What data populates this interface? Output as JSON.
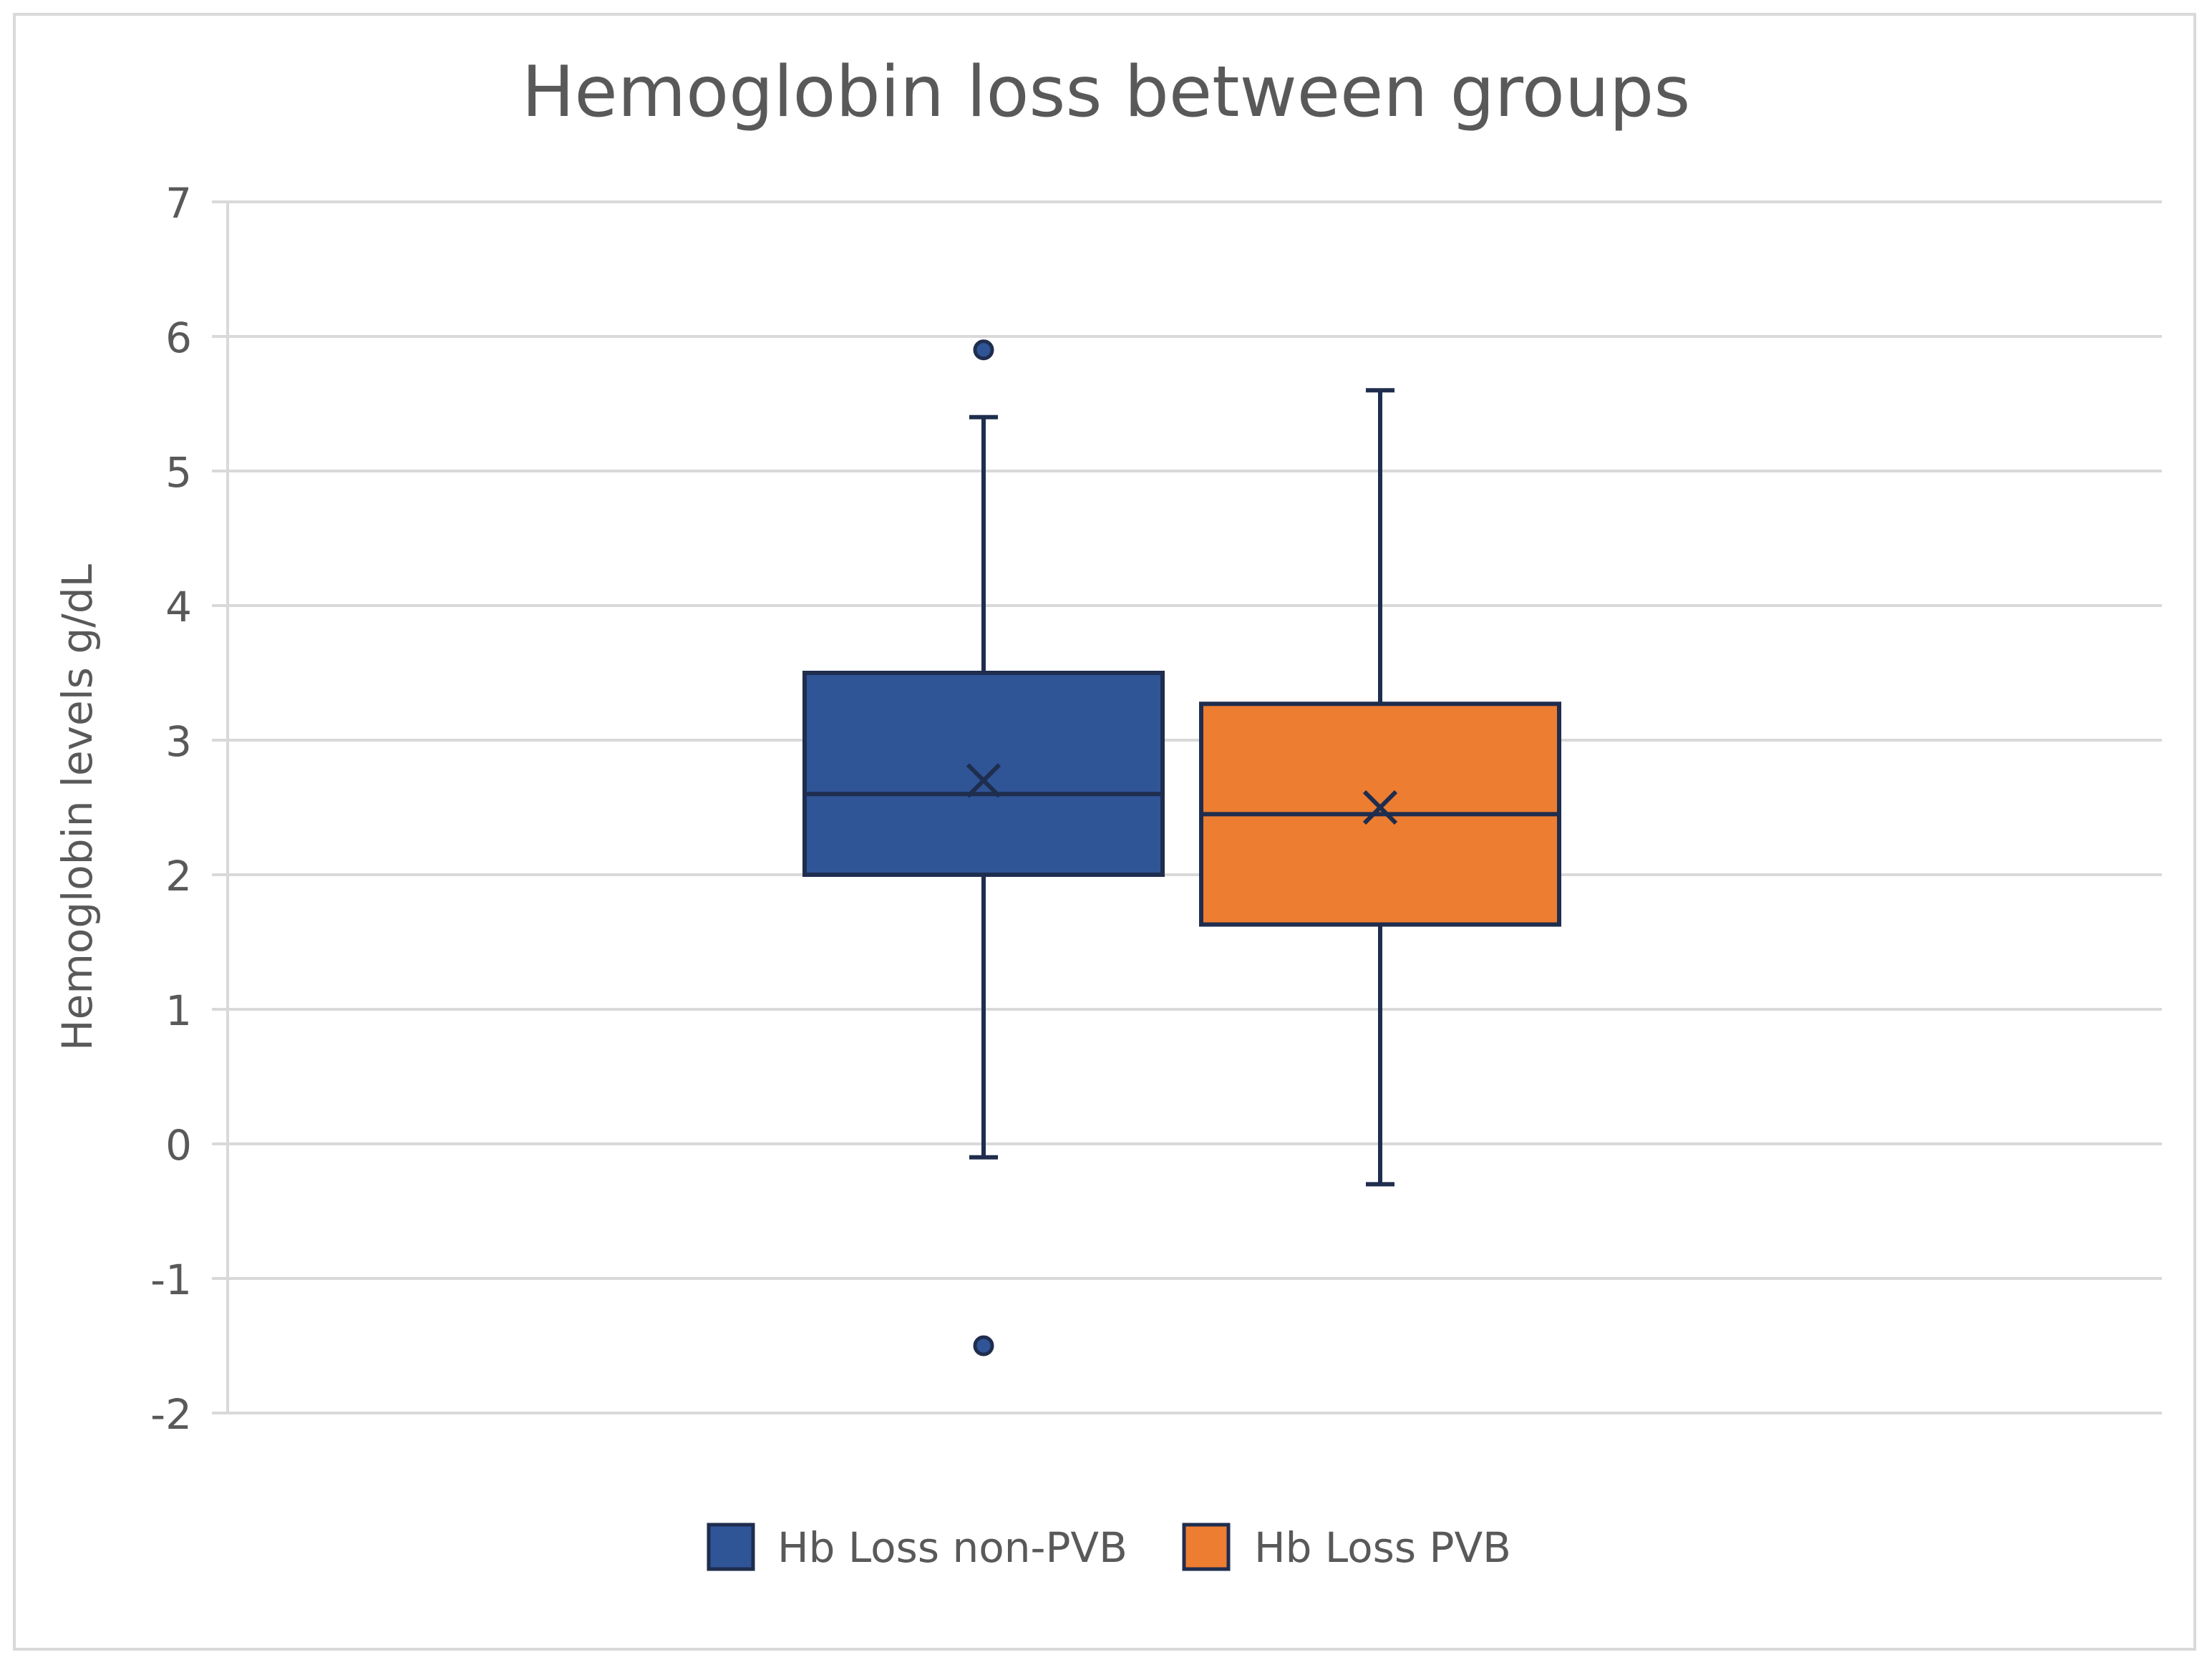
{
  "chart_data": {
    "type": "box",
    "title": "Hemoglobin loss between groups",
    "xlabel": "",
    "ylabel": "Hemoglobin levels g/dL",
    "ylim": [
      -2,
      7
    ],
    "y_ticks": [
      -2,
      -1,
      0,
      1,
      2,
      3,
      4,
      5,
      6,
      7
    ],
    "grid": true,
    "legend_position": "bottom",
    "series": [
      {
        "name": "Hb Loss non-PVB",
        "color": "#2f5597",
        "min": -0.1,
        "q1": 2.0,
        "median": 2.6,
        "mean": 2.7,
        "q3": 3.5,
        "max": 5.4,
        "outliers": [
          5.9,
          -1.5
        ]
      },
      {
        "name": "Hb Loss PVB",
        "color": "#ed7d31",
        "min": -0.3,
        "q1": 1.63,
        "median": 2.45,
        "mean": 2.5,
        "q3": 3.27,
        "max": 5.6,
        "outliers": []
      }
    ]
  },
  "colors": {
    "outline": "#1f2d4e",
    "gridline": "#d9d9d9",
    "text": "#595959"
  }
}
